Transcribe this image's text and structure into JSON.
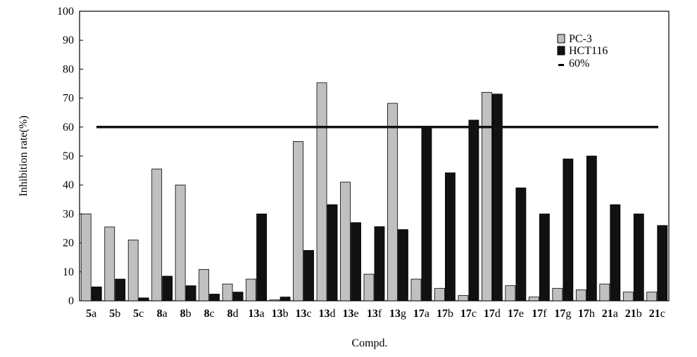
{
  "chart_data": {
    "type": "bar",
    "categories": [
      {
        "num": "5",
        "suffix": "a"
      },
      {
        "num": "5",
        "suffix": "b"
      },
      {
        "num": "5",
        "suffix": "c"
      },
      {
        "num": "8",
        "suffix": "a"
      },
      {
        "num": "8",
        "suffix": "b"
      },
      {
        "num": "8",
        "suffix": "c"
      },
      {
        "num": "8",
        "suffix": "d"
      },
      {
        "num": "13",
        "suffix": "a"
      },
      {
        "num": "13",
        "suffix": "b"
      },
      {
        "num": "13",
        "suffix": "c"
      },
      {
        "num": "13",
        "suffix": "d"
      },
      {
        "num": "13",
        "suffix": "e"
      },
      {
        "num": "13",
        "suffix": "f"
      },
      {
        "num": "13",
        "suffix": "g"
      },
      {
        "num": "17",
        "suffix": "a"
      },
      {
        "num": "17",
        "suffix": "b"
      },
      {
        "num": "17",
        "suffix": "c"
      },
      {
        "num": "17",
        "suffix": "d"
      },
      {
        "num": "17",
        "suffix": "e"
      },
      {
        "num": "17",
        "suffix": "f"
      },
      {
        "num": "17",
        "suffix": "g"
      },
      {
        "num": "17",
        "suffix": "h"
      },
      {
        "num": "21",
        "suffix": "a"
      },
      {
        "num": "21",
        "suffix": "b"
      },
      {
        "num": "21",
        "suffix": "c"
      }
    ],
    "series": [
      {
        "name": "PC-3",
        "color": "#c0c0c0",
        "values": [
          30,
          25.5,
          21,
          45.5,
          40,
          10.8,
          5.8,
          7.5,
          0.3,
          55,
          75.3,
          41,
          9.2,
          68.2,
          7.5,
          4.3,
          1.8,
          72,
          5.2,
          1.3,
          4.3,
          3.8,
          5.8,
          3,
          3
        ]
      },
      {
        "name": "HCT116",
        "color": "#111111",
        "values": [
          4.8,
          7.5,
          1,
          8.5,
          5.2,
          2.3,
          3,
          30,
          1.3,
          17.4,
          33.2,
          27,
          25.6,
          24.6,
          60,
          44.2,
          62.4,
          71.4,
          39,
          30,
          49,
          50,
          33.2,
          30,
          26
        ]
      }
    ],
    "threshold": {
      "name": "60%",
      "value": 60
    },
    "xlabel": "Compd.",
    "ylabel": "Inhibition rate(%)",
    "ylim": [
      0,
      100
    ],
    "yticks": [
      0,
      10,
      20,
      30,
      40,
      50,
      60,
      70,
      80,
      90,
      100
    ],
    "grid": false,
    "legend_position": "top-right"
  }
}
